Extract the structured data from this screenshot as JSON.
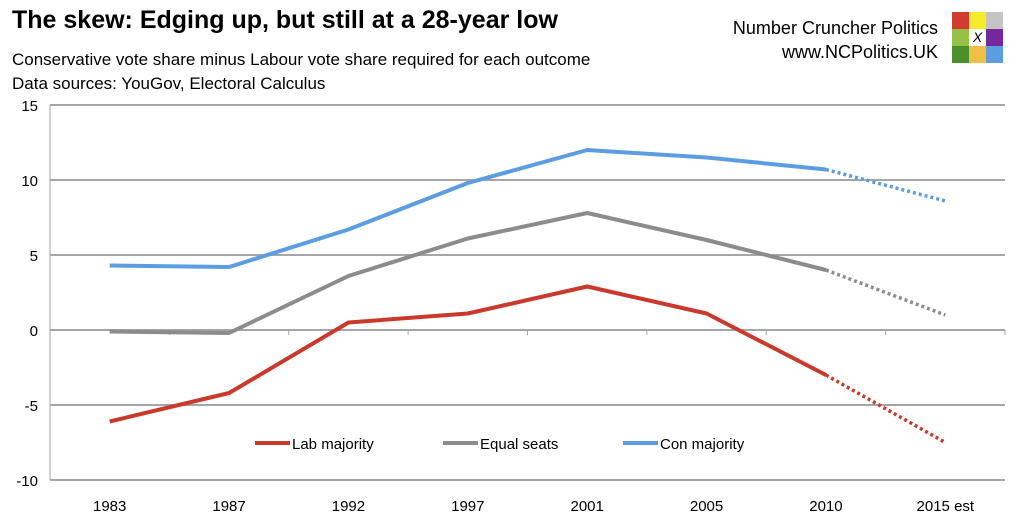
{
  "header": {
    "title": "The skew: Edging up, but still at a 28-year low",
    "subtitle": "Conservative vote share minus Labour vote share required for each outcome",
    "sources": "Data sources: YouGov, Electoral Calculus",
    "brand_name": "Number Cruncher Politics",
    "brand_url": "www.NCPolitics.UK",
    "logo_colors": [
      "#d13b2f",
      "#f7ec2c",
      "#c4c4c4",
      "#96bf45",
      "#ffffff",
      "#74299a",
      "#4a8f2a",
      "#f0bf45",
      "#5b9de0"
    ],
    "logo_mark": "X"
  },
  "chart_data": {
    "type": "line",
    "title": "",
    "xlabel": "",
    "ylabel": "",
    "categories": [
      "1983",
      "1987",
      "1992",
      "1997",
      "2001",
      "2005",
      "2010",
      "2015 est"
    ],
    "ylim": [
      -10,
      15
    ],
    "yticks": [
      -10,
      -5,
      0,
      5,
      10,
      15
    ],
    "grid": true,
    "legend_position": "bottom-center inside",
    "estimated_from_index": 6,
    "series": [
      {
        "name": "Lab majority",
        "color": "#c9392c",
        "values": [
          -6.1,
          -4.2,
          0.5,
          1.1,
          2.9,
          1.1,
          -3.0,
          -7.5
        ]
      },
      {
        "name": "Equal seats",
        "color": "#8c8c8c",
        "values": [
          -0.1,
          -0.2,
          3.6,
          6.1,
          7.8,
          6.0,
          4.0,
          1.0
        ]
      },
      {
        "name": "Con majority",
        "color": "#5b9de0",
        "values": [
          4.3,
          4.2,
          6.7,
          9.8,
          12.0,
          11.5,
          10.7,
          8.6
        ]
      }
    ]
  }
}
